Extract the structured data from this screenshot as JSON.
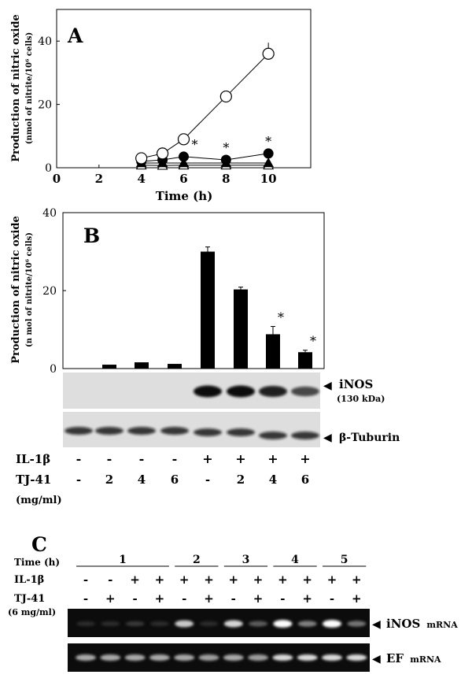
{
  "chart_data": [
    {
      "panel": "A",
      "type": "line",
      "ylabel": "Production of nitric oxide",
      "ylabel2": "(nmol of nitrite/10⁶ cells)",
      "xlabel": "Time (h)",
      "xlim": [
        0,
        12
      ],
      "ylim": [
        0,
        50
      ],
      "xticks": [
        0,
        2,
        4,
        6,
        8,
        10
      ],
      "yticks": [
        0,
        20,
        40
      ],
      "series": [
        {
          "marker": "open-circle",
          "x": [
            4,
            5,
            6,
            8,
            10
          ],
          "y": [
            3,
            4.5,
            9,
            22.5,
            36
          ],
          "err": [
            0,
            0,
            0,
            0,
            3.5
          ]
        },
        {
          "marker": "filled-circle",
          "x": [
            4,
            5,
            6,
            8,
            10
          ],
          "y": [
            2,
            2.5,
            3.5,
            2.5,
            4.5
          ],
          "err": [
            0,
            0,
            0,
            0,
            0
          ]
        },
        {
          "marker": "open-triangle",
          "x": [
            4,
            5,
            6,
            8,
            10
          ],
          "y": [
            0.8,
            0.7,
            0.8,
            0.8,
            0.8
          ],
          "err": [
            0,
            0,
            0,
            0,
            0
          ]
        },
        {
          "marker": "filled-triangle",
          "x": [
            4,
            5,
            6,
            8,
            10
          ],
          "y": [
            1.5,
            1.5,
            1.5,
            1.5,
            1.5
          ],
          "err": [
            0,
            0,
            0,
            0,
            0
          ]
        }
      ],
      "stars": [
        6,
        8,
        10
      ],
      "star_label": "*"
    },
    {
      "panel": "B",
      "type": "bar",
      "ylabel": "Production of nitric oxide",
      "ylabel2": "(n mol of nitrite/10⁶ cells)",
      "ylim": [
        0,
        40
      ],
      "yticks": [
        0,
        20,
        40
      ],
      "values": [
        0,
        1,
        1.6,
        1.2,
        30,
        20.3,
        8.8,
        4.2
      ],
      "err": [
        0,
        0,
        0,
        0,
        1.2,
        0.6,
        2,
        0.5
      ],
      "stars": [
        6,
        7
      ],
      "star_label": "*"
    }
  ],
  "panel_labels": {
    "a": "A",
    "b": "B",
    "c": "C"
  },
  "blot_b": {
    "inos_label": "iNOS",
    "inos_kda": "(130 kDa)",
    "tubulin_label": "β-Tuburin",
    "arrow": "◀",
    "inos_intensity": [
      0,
      0,
      0,
      0,
      1,
      1,
      0.85,
      0.55
    ],
    "rows": {
      "il1b": {
        "label": "IL-1β",
        "values": [
          "-",
          "-",
          "-",
          "-",
          "+",
          "+",
          "+",
          "+"
        ]
      },
      "tj41": {
        "label": "TJ-41",
        "values": [
          "-",
          "2",
          "4",
          "6",
          "-",
          "2",
          "4",
          "6"
        ]
      },
      "unit": "(mg/ml)"
    }
  },
  "gel_c": {
    "time_label": "Time (h)",
    "time_groups": [
      "1",
      "2",
      "3",
      "4",
      "5"
    ],
    "il1b_label": "IL-1β",
    "il1b": [
      "-",
      "-",
      "+",
      "+",
      "+",
      "+",
      "+",
      "+",
      "+",
      "+",
      "+",
      "+"
    ],
    "tj41_label": "TJ-41",
    "tj41_unit": "(6 mg/ml)",
    "tj41": [
      "-",
      "+",
      "-",
      "+",
      "-",
      "+",
      "-",
      "+",
      "-",
      "+",
      "-",
      "+"
    ],
    "inos_label": "iNOS",
    "mrna_label": "mRNA",
    "ef_label": "EF",
    "inos_intensity": [
      0.05,
      0.05,
      0.1,
      0.05,
      0.7,
      0.05,
      0.75,
      0.25,
      0.95,
      0.4,
      0.95,
      0.35
    ],
    "ef_intensity": [
      0.65,
      0.65,
      0.65,
      0.65,
      0.65,
      0.6,
      0.65,
      0.6,
      0.85,
      0.85,
      0.85,
      0.85
    ]
  }
}
